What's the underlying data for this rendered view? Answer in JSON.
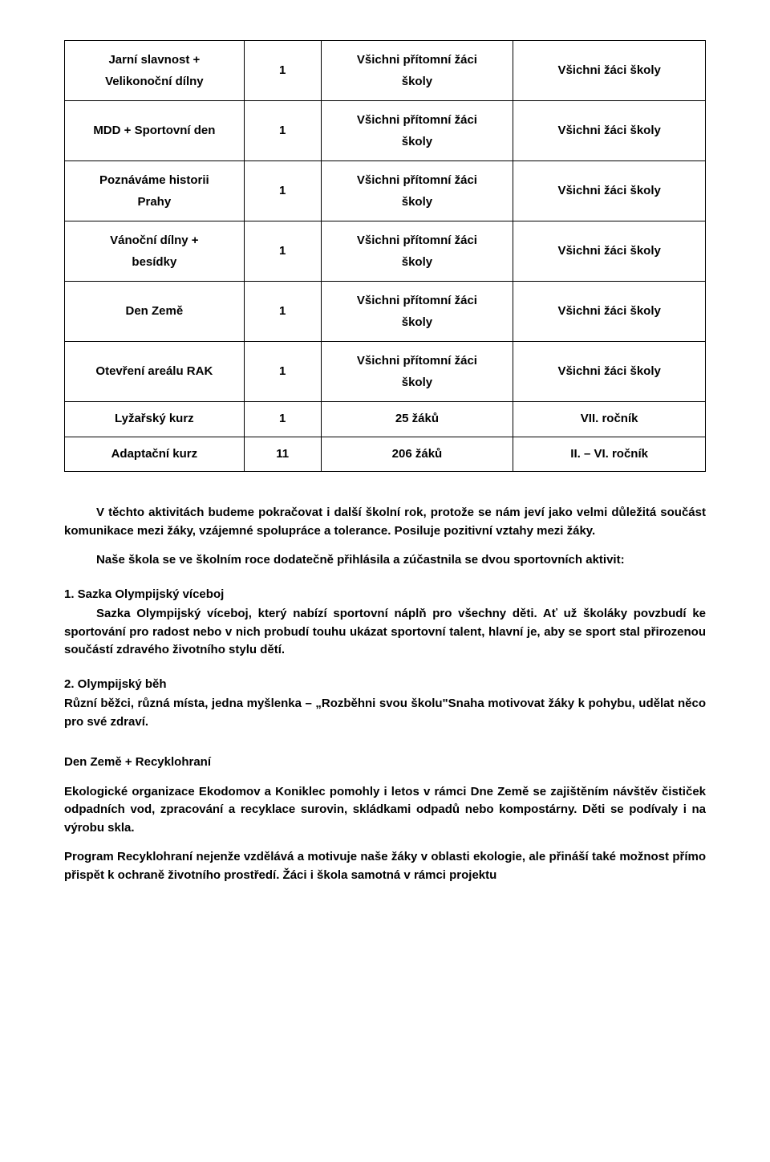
{
  "table": {
    "rows": [
      {
        "c1": "Jarní slavnost +\nVelikonoční dílny",
        "c2": "1",
        "c3": "Všichni přítomní žáci\nškoly",
        "c4": "Všichni žáci školy"
      },
      {
        "c1": "MDD + Sportovní den",
        "c2": "1",
        "c3": "Všichni přítomní žáci\nškoly",
        "c4": "Všichni žáci školy"
      },
      {
        "c1": "Poznáváme historii\nPrahy",
        "c2": "1",
        "c3": "Všichni přítomní žáci\nškoly",
        "c4": "Všichni žáci školy"
      },
      {
        "c1": "Vánoční dílny +\nbesídky",
        "c2": "1",
        "c3": "Všichni přítomní žáci\nškoly",
        "c4": "Všichni žáci školy"
      },
      {
        "c1": "Den Země",
        "c2": "1",
        "c3": "Všichni přítomní žáci\nškoly",
        "c4": "Všichni žáci školy"
      },
      {
        "c1": "Otevření areálu RAK",
        "c2": "1",
        "c3": "Všichni přítomní žáci\nškoly",
        "c4": "Všichni žáci školy"
      },
      {
        "c1": "Lyžařský kurz",
        "c2": "1",
        "c3": "25 žáků",
        "c4": "VII. ročník"
      },
      {
        "c1": "Adaptační kurz",
        "c2": "11",
        "c3": "206 žáků",
        "c4": "II. – VI. ročník"
      }
    ],
    "col_widths": [
      "28%",
      "12%",
      "30%",
      "30%"
    ]
  },
  "body": {
    "p1": "V těchto aktivitách budeme pokračovat i další školní rok, protože se nám jeví jako velmi důležitá součást komunikace mezi žáky, vzájemné spolupráce a tolerance. Posiluje pozitivní vztahy mezi žáky.",
    "p2": "Naše škola se ve školním roce dodatečně přihlásila a zúčastnila se dvou sportovních aktivit:",
    "s1_head": "1. Sazka Olympijský víceboj",
    "s1_body": "Sazka Olympijský víceboj, který nabízí sportovní náplň pro všechny děti. Ať už školáky povzbudí ke sportování pro radost nebo v nich probudí touhu ukázat sportovní talent, hlavní je, aby se sport stal přirozenou součástí zdravého životního stylu dětí.",
    "s2_head": "2. Olympijský běh",
    "s2_body": "Různí běžci, různá místa, jedna myšlenka – „Rozběhni svou školu\"Snaha motivovat žáky k pohybu, udělat něco pro své zdraví.",
    "s3_head": "Den Země + Recyklohraní",
    "s3_p1": "Ekologické organizace Ekodomov a Koniklec pomohly i letos v rámci Dne Země se zajištěním návštěv čističek odpadních vod, zpracování a recyklace surovin, skládkami odpadů nebo kompostárny. Děti se podívaly i na výrobu skla.",
    "s3_p2": "Program Recyklohraní nejenže vzdělává a motivuje naše žáky v oblasti ekologie, ale přináší také možnost přímo přispět k ochraně životního prostředí. Žáci i škola samotná v rámci projektu"
  }
}
